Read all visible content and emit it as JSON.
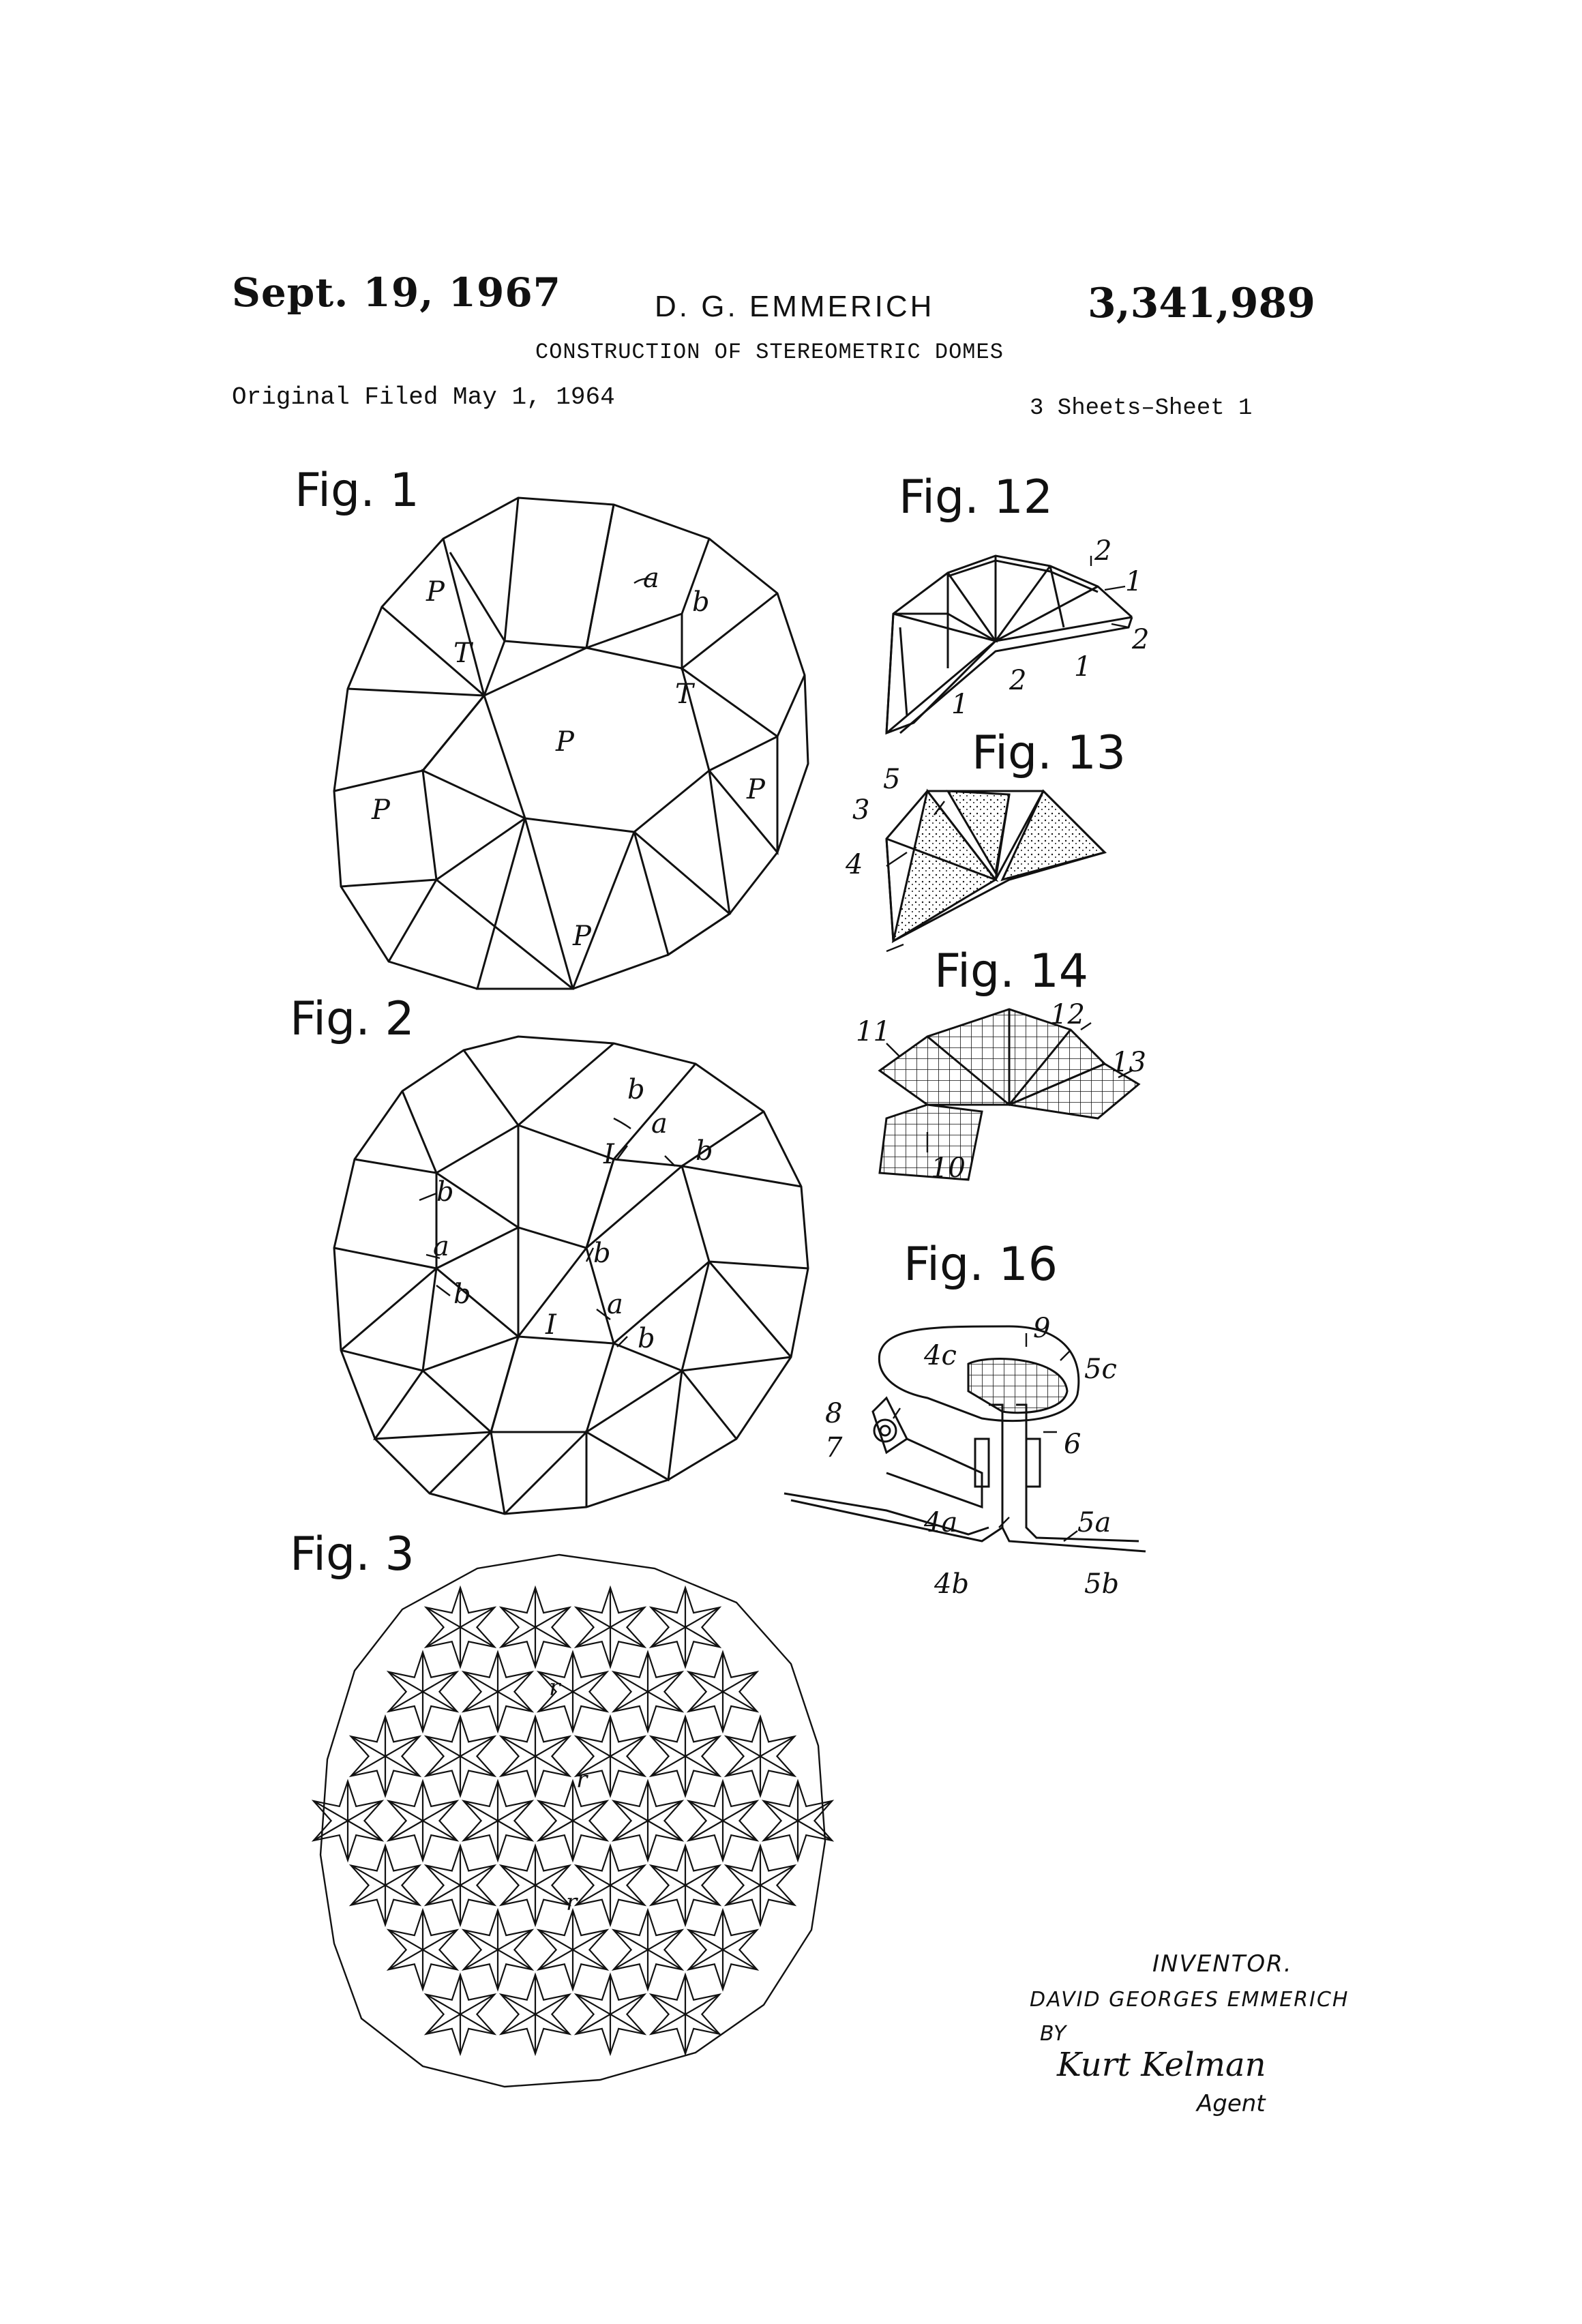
{
  "header": {
    "date": "Sept. 19, 1967",
    "inventor": "D. G. EMMERICH",
    "patent_number": "3,341,989",
    "title": "CONSTRUCTION OF STEREOMETRIC DOMES",
    "filed": "Original Filed May 1, 1964",
    "sheet": "3 Sheets–Sheet 1"
  },
  "figures": {
    "fig1": "Fig. 1",
    "fig2": "Fig. 2",
    "fig3": "Fig. 3",
    "fig12": "Fig. 12",
    "fig13": "Fig. 13",
    "fig14": "Fig. 14",
    "fig16": "Fig. 16"
  },
  "refs": {
    "P": "P",
    "T": "T",
    "a": "a",
    "b": "b",
    "I": "I",
    "r": "r",
    "n1": "1",
    "n2": "2",
    "n3": "3",
    "n4": "4",
    "n5": "5",
    "n6": "6",
    "n7": "7",
    "n8": "8",
    "n9": "9",
    "n10": "10",
    "n11": "11",
    "n12": "12",
    "n13": "13",
    "n4a": "4a",
    "n4b": "4b",
    "n4c": "4c",
    "n5a": "5a",
    "n5b": "5b",
    "n5c": "5c"
  },
  "signature": {
    "inventor_label": "INVENTOR.",
    "inventor_name": "DAVID GEORGES EMMERICH",
    "by": "BY",
    "agent_name": "Kurt Kelman",
    "agent_label": "Agent"
  }
}
